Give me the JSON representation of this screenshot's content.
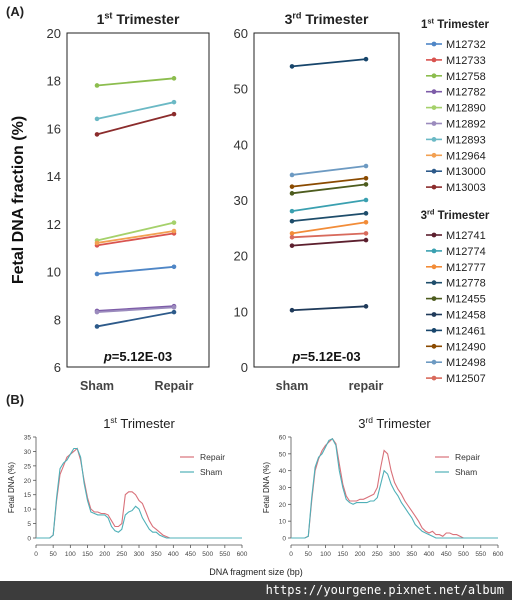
{
  "panels": {
    "a": "(A)",
    "b": "(B)"
  },
  "colors": {
    "M12732": "#4f86c6",
    "M12733": "#d9534f",
    "M12758": "#8cbd4e",
    "M12782": "#7d5ca8",
    "M12890": "#a5d16b",
    "M12892": "#9b8bbd",
    "M12893": "#6bb9c5",
    "M12964": "#f2a052",
    "M13000": "#2d5a8a",
    "M13003": "#8b2c2c",
    "M12741": "#5c1f2e",
    "M12774": "#3aa0b0",
    "M12777": "#f28c38",
    "M12778": "#1e4d6b",
    "M12455": "#4d5c1e",
    "M12458": "#1f3a5a",
    "M12461": "#17456b",
    "M12490": "#8a4a00",
    "M12498": "#6d9ac2",
    "M12507": "#d86a5c",
    "repair": "#d9717a",
    "sham": "#4fb0b8"
  },
  "chart_data": [
    {
      "type": "line",
      "panel": "A",
      "title": "1st Trimester",
      "title_base": "1",
      "title_sup": "st",
      "title_rest": " Trimester",
      "ylabel": "Fetal DNA fraction (%)",
      "categories": [
        "Sham",
        "Repair"
      ],
      "ylim": [
        6,
        20
      ],
      "yticks": [
        6,
        8,
        10,
        12,
        14,
        16,
        18,
        20
      ],
      "annotation": "p=5.12E-03",
      "annotation_p": "p",
      "annotation_rest": "=5.12E-03",
      "series": [
        {
          "name": "M12732",
          "values": [
            9.9,
            10.2
          ]
        },
        {
          "name": "M12733",
          "values": [
            11.1,
            11.6
          ]
        },
        {
          "name": "M12758",
          "values": [
            17.8,
            18.1
          ]
        },
        {
          "name": "M12782",
          "values": [
            8.35,
            8.55
          ]
        },
        {
          "name": "M12890",
          "values": [
            11.3,
            12.05
          ]
        },
        {
          "name": "M12892",
          "values": [
            8.3,
            8.5
          ]
        },
        {
          "name": "M12893",
          "values": [
            16.4,
            17.1
          ]
        },
        {
          "name": "M12964",
          "values": [
            11.2,
            11.7
          ]
        },
        {
          "name": "M13000",
          "values": [
            7.7,
            8.3
          ]
        },
        {
          "name": "M13003",
          "values": [
            15.75,
            16.6
          ]
        }
      ]
    },
    {
      "type": "line",
      "panel": "A",
      "title": "3rd Trimester",
      "title_base": "3",
      "title_sup": "rd",
      "title_rest": " Trimester",
      "categories": [
        "sham",
        "repair"
      ],
      "ylim": [
        0,
        60
      ],
      "yticks": [
        0,
        10,
        20,
        30,
        40,
        50,
        60
      ],
      "annotation": "p=5.12E-03",
      "annotation_p": "p",
      "annotation_rest": "=5.12E-03",
      "series": [
        {
          "name": "M12741",
          "values": [
            21.8,
            22.8
          ]
        },
        {
          "name": "M12774",
          "values": [
            28.0,
            30.0
          ]
        },
        {
          "name": "M12777",
          "values": [
            24.0,
            26.0
          ]
        },
        {
          "name": "M12778",
          "values": [
            26.2,
            27.6
          ]
        },
        {
          "name": "M12455",
          "values": [
            31.2,
            32.8
          ]
        },
        {
          "name": "M12458",
          "values": [
            10.2,
            10.9
          ]
        },
        {
          "name": "M12461",
          "values": [
            54.0,
            55.3
          ]
        },
        {
          "name": "M12490",
          "values": [
            32.4,
            33.9
          ]
        },
        {
          "name": "M12498",
          "values": [
            34.5,
            36.1
          ]
        },
        {
          "name": "M12507",
          "values": [
            23.3,
            24.0
          ]
        }
      ]
    },
    {
      "type": "line",
      "panel": "B",
      "title": "1st Trimester",
      "title_base": "1",
      "title_sup": "st",
      "title_rest": " Trimester",
      "ylabel": "Fetal DNA (%)",
      "xlabel": "DNA fragment size (bp)",
      "xlim": [
        0,
        600
      ],
      "xticks": [
        0,
        50,
        100,
        150,
        200,
        250,
        300,
        350,
        400,
        450,
        500,
        550,
        600
      ],
      "ylim": [
        0,
        35
      ],
      "yticks": [
        0,
        5,
        10,
        15,
        20,
        25,
        30,
        35
      ],
      "x": [
        0,
        20,
        40,
        50,
        60,
        70,
        80,
        90,
        100,
        110,
        120,
        130,
        140,
        150,
        160,
        170,
        180,
        190,
        200,
        210,
        220,
        230,
        240,
        250,
        260,
        270,
        280,
        290,
        300,
        310,
        320,
        330,
        340,
        350,
        360,
        370,
        380,
        390,
        400,
        420,
        450,
        500,
        550,
        600
      ],
      "series": [
        {
          "name": "Repair",
          "values": [
            0,
            0,
            0,
            1,
            13,
            22,
            25,
            28,
            29,
            30,
            31,
            27,
            20,
            14,
            10,
            9,
            9,
            8.5,
            8.5,
            8,
            6,
            4,
            4,
            5,
            15,
            16,
            16,
            15,
            13,
            12,
            9,
            6,
            4,
            3,
            2,
            1,
            0.5,
            0,
            0,
            0,
            0,
            0,
            0,
            0
          ]
        },
        {
          "name": "Sham",
          "values": [
            0,
            0,
            0,
            1,
            14,
            24,
            26,
            27,
            29,
            31,
            31,
            28,
            19,
            13,
            9,
            8.5,
            8,
            8,
            8,
            7,
            4,
            2.5,
            2,
            3,
            8,
            9,
            9.5,
            11,
            10,
            7,
            5,
            3,
            2,
            2,
            1,
            0.5,
            0,
            0,
            0,
            0,
            0,
            0,
            0,
            0
          ]
        }
      ]
    },
    {
      "type": "line",
      "panel": "B",
      "title": "3rd Trimester",
      "title_base": "3",
      "title_sup": "rd",
      "title_rest": " Trimester",
      "ylabel": "Fetal DNA (%)",
      "xlim": [
        0,
        600
      ],
      "xticks": [
        0,
        50,
        100,
        150,
        200,
        250,
        300,
        350,
        400,
        450,
        500,
        550,
        600
      ],
      "ylim": [
        0,
        60
      ],
      "yticks": [
        0,
        10,
        20,
        30,
        40,
        50,
        60
      ],
      "x": [
        0,
        20,
        40,
        50,
        60,
        70,
        80,
        90,
        100,
        110,
        120,
        130,
        140,
        150,
        160,
        170,
        180,
        190,
        200,
        210,
        220,
        230,
        240,
        250,
        260,
        270,
        280,
        290,
        300,
        310,
        320,
        330,
        340,
        350,
        360,
        370,
        380,
        390,
        400,
        410,
        420,
        430,
        440,
        450,
        460,
        470,
        480,
        490,
        500,
        550,
        600
      ],
      "series": [
        {
          "name": "Repair",
          "values": [
            0,
            0,
            0,
            1,
            22,
            40,
            47,
            52,
            55,
            57,
            59,
            56,
            44,
            32,
            25,
            22,
            22,
            22,
            23,
            23,
            24,
            25,
            26,
            30,
            42,
            52,
            50,
            40,
            33,
            29,
            26,
            22,
            19,
            16,
            13,
            10,
            6,
            4,
            3,
            4,
            2,
            2,
            1,
            3,
            3,
            2,
            2,
            1,
            0,
            0,
            0
          ]
        },
        {
          "name": "Sham",
          "values": [
            0,
            0,
            0,
            1,
            24,
            42,
            48,
            50,
            54,
            58,
            59,
            55,
            40,
            30,
            23,
            21,
            20,
            21,
            21,
            21,
            21,
            22,
            22,
            24,
            32,
            40,
            38,
            32,
            28,
            25,
            21,
            18,
            15,
            12,
            8,
            6,
            4,
            3,
            2,
            1,
            0,
            0,
            0,
            0,
            0,
            0,
            0,
            0,
            0,
            0,
            0
          ]
        }
      ]
    }
  ],
  "watermark": "https://yourgene.pixnet.net/album"
}
